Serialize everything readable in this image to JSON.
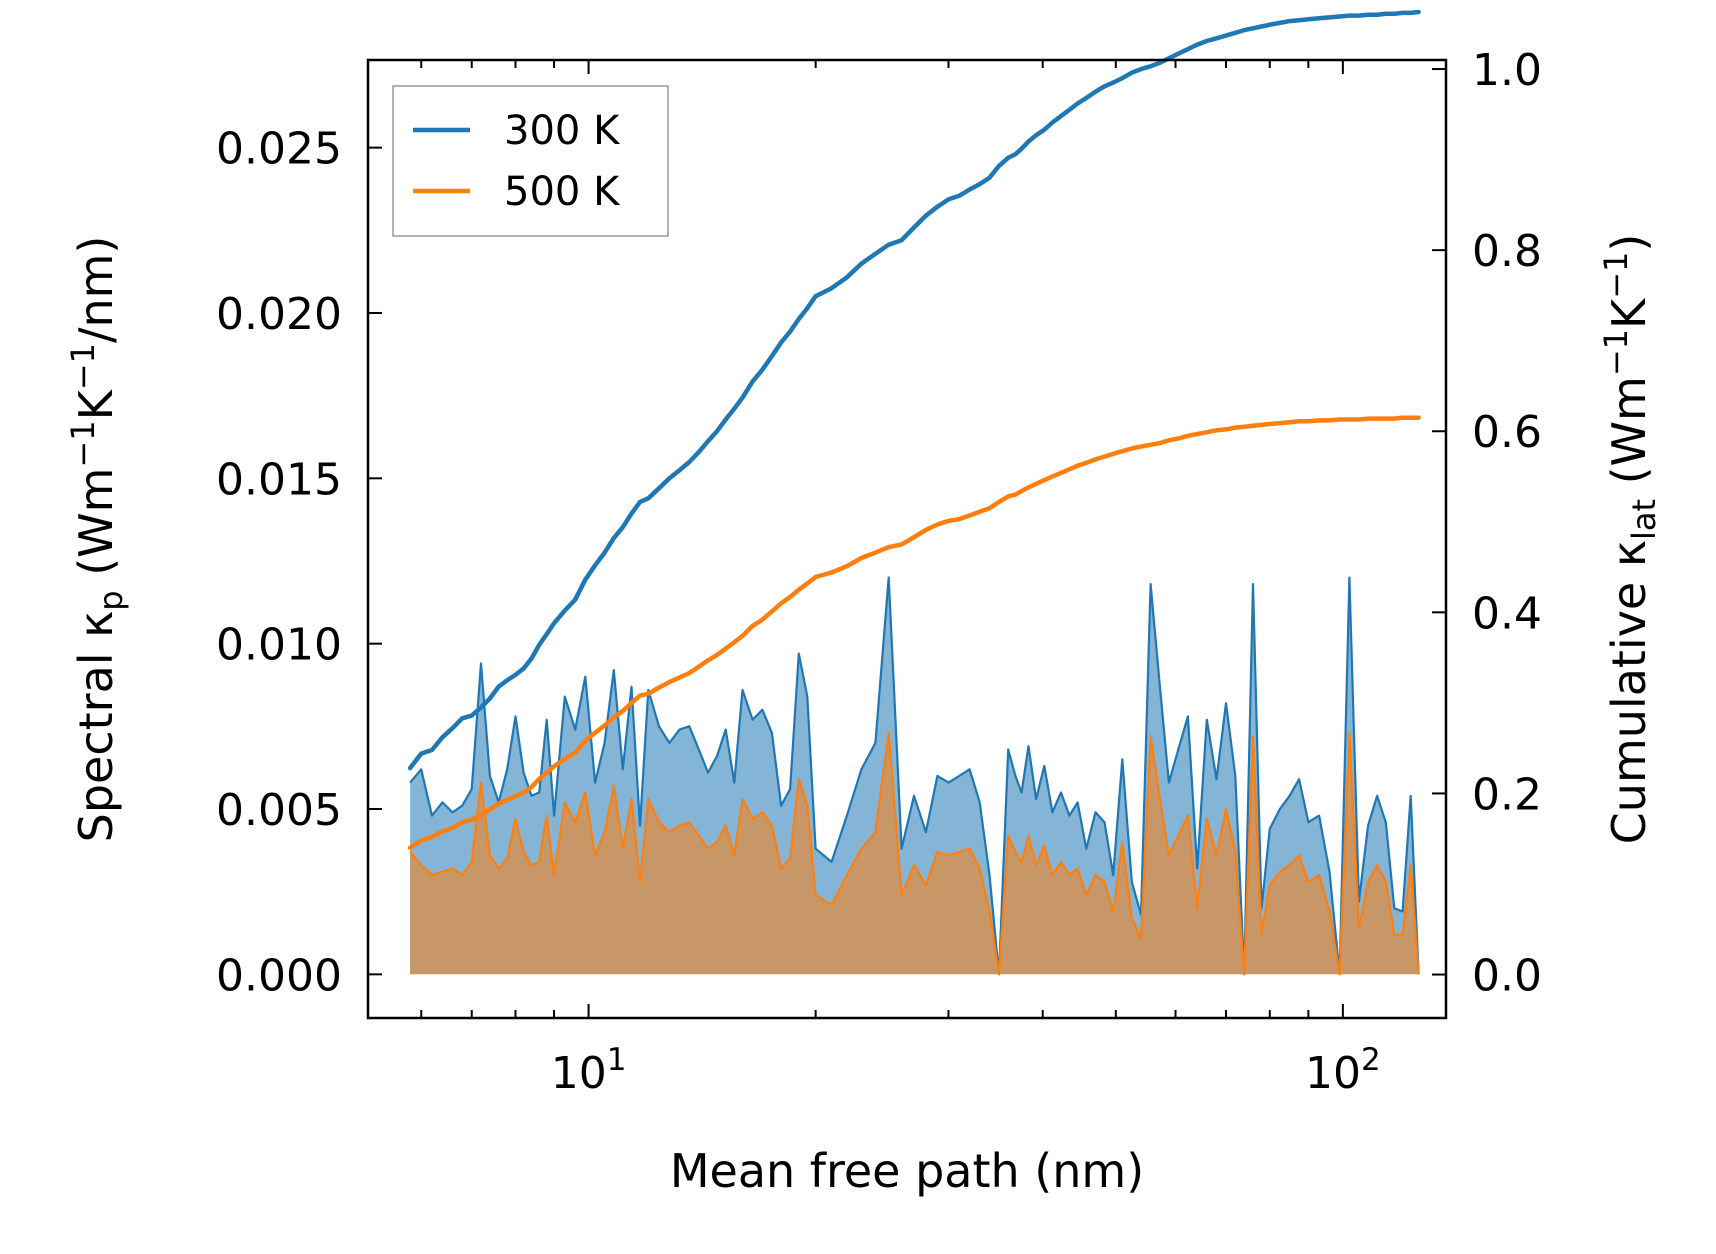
{
  "chart_data": {
    "type": "line",
    "xscale": "log",
    "xlim": [
      5.1,
      137
    ],
    "xlabel": "Mean free path (nm)",
    "xticks": [
      {
        "value": 10,
        "base": "10",
        "exp": "1"
      },
      {
        "value": 100,
        "base": "10",
        "exp": "2"
      }
    ],
    "left_axis": {
      "label_parts": [
        "Spectral κ",
        "p",
        " (Wm",
        "−1",
        "K",
        "−1",
        "/nm)"
      ],
      "ylim": [
        -0.00132,
        0.02765
      ],
      "ticks": [
        "0.000",
        "0.005",
        "0.010",
        "0.015",
        "0.020",
        "0.025"
      ],
      "tick_values": [
        0,
        0.005,
        0.01,
        0.015,
        0.02,
        0.025
      ]
    },
    "right_axis": {
      "label_parts": [
        "Cumulative κ",
        "lat",
        " (Wm",
        "−1",
        "K",
        "−1",
        ")"
      ],
      "ylim": [
        -0.048,
        1.01
      ],
      "ticks": [
        "0.0",
        "0.2",
        "0.4",
        "0.6",
        "0.8",
        "1.0"
      ],
      "tick_values": [
        0,
        0.2,
        0.4,
        0.6,
        0.8,
        1.0
      ]
    },
    "legend": {
      "position": "upper-left",
      "entries": [
        {
          "label": "300 K",
          "color": "#1f77b4"
        },
        {
          "label": "500 K",
          "color": "#ff7f0e"
        }
      ]
    },
    "x": [
      5.8,
      6.0,
      6.2,
      6.4,
      6.6,
      6.8,
      7.0,
      7.2,
      7.4,
      7.6,
      7.8,
      8.0,
      8.2,
      8.4,
      8.6,
      8.8,
      9.0,
      9.3,
      9.6,
      9.9,
      10.2,
      10.5,
      10.8,
      11.1,
      11.4,
      11.7,
      12.0,
      12.4,
      12.8,
      13.2,
      13.6,
      14.0,
      14.4,
      14.8,
      15.2,
      15.6,
      16.0,
      16.5,
      17.0,
      17.5,
      18.0,
      18.5,
      19.0,
      19.5,
      20.0,
      21.0,
      22.0,
      23.0,
      24.0,
      25.0,
      26.0,
      27.0,
      28.0,
      29.0,
      30.0,
      31.0,
      32.0,
      33.0,
      34.0,
      35.0,
      36.0,
      36.8,
      37.5,
      38.3,
      39.2,
      40.2,
      41.2,
      42.3,
      43.4,
      44.5,
      45.7,
      47.0,
      48.3,
      49.6,
      51.0,
      52.5,
      54.0,
      55.6,
      57.2,
      58.8,
      60.5,
      62.3,
      64.1,
      66.0,
      68.0,
      70.0,
      72.0,
      74.0,
      76.0,
      78.0,
      80.0,
      82.5,
      85.0,
      87.5,
      90.0,
      93.0,
      96.0,
      99.0,
      102.0,
      105.0,
      108.0,
      111.0,
      114.0,
      117.0,
      120.0,
      123.0,
      126.0
    ],
    "series": [
      {
        "name": "300 K",
        "color": "#1f77b4",
        "spectral": [
          0.0058,
          0.0062,
          0.0048,
          0.0052,
          0.0049,
          0.0051,
          0.0056,
          0.0094,
          0.006,
          0.0052,
          0.0062,
          0.0078,
          0.0061,
          0.0054,
          0.0055,
          0.0077,
          0.0048,
          0.0084,
          0.0074,
          0.009,
          0.0058,
          0.007,
          0.0092,
          0.0062,
          0.0087,
          0.0045,
          0.0086,
          0.0075,
          0.007,
          0.0074,
          0.0075,
          0.0068,
          0.0061,
          0.0066,
          0.0074,
          0.0058,
          0.0086,
          0.0077,
          0.008,
          0.0073,
          0.0051,
          0.0056,
          0.0097,
          0.0084,
          0.0038,
          0.0034,
          0.0048,
          0.0062,
          0.007,
          0.012,
          0.0038,
          0.0054,
          0.0043,
          0.006,
          0.0058,
          0.006,
          0.0062,
          0.0052,
          0.003,
          0.0,
          0.0068,
          0.006,
          0.0055,
          0.0069,
          0.0053,
          0.0063,
          0.0049,
          0.0055,
          0.0048,
          0.0052,
          0.0038,
          0.0049,
          0.0046,
          0.003,
          0.0065,
          0.0028,
          0.0018,
          0.0118,
          0.0087,
          0.0058,
          0.0068,
          0.0078,
          0.0032,
          0.0077,
          0.0059,
          0.0082,
          0.006,
          0.0,
          0.0118,
          0.002,
          0.0044,
          0.005,
          0.0054,
          0.0059,
          0.0046,
          0.0048,
          0.0031,
          0.0,
          0.012,
          0.0022,
          0.0045,
          0.0054,
          0.0046,
          0.002,
          0.0019,
          0.0054,
          0.0
        ],
        "cumulative": [
          0.228,
          0.244,
          0.248,
          0.262,
          0.272,
          0.283,
          0.286,
          0.295,
          0.305,
          0.318,
          0.325,
          0.331,
          0.338,
          0.349,
          0.364,
          0.376,
          0.388,
          0.402,
          0.414,
          0.436,
          0.452,
          0.466,
          0.482,
          0.494,
          0.509,
          0.522,
          0.526,
          0.537,
          0.548,
          0.557,
          0.566,
          0.577,
          0.589,
          0.6,
          0.613,
          0.625,
          0.637,
          0.655,
          0.668,
          0.683,
          0.698,
          0.71,
          0.724,
          0.736,
          0.749,
          0.758,
          0.77,
          0.785,
          0.796,
          0.806,
          0.811,
          0.825,
          0.838,
          0.848,
          0.856,
          0.86,
          0.867,
          0.873,
          0.88,
          0.893,
          0.902,
          0.906,
          0.912,
          0.92,
          0.927,
          0.933,
          0.941,
          0.948,
          0.955,
          0.962,
          0.968,
          0.975,
          0.981,
          0.985,
          0.99,
          0.996,
          1.0,
          1.003,
          1.007,
          1.012,
          1.017,
          1.022,
          1.027,
          1.031,
          1.034,
          1.037,
          1.04,
          1.043,
          1.045,
          1.047,
          1.049,
          1.051,
          1.053,
          1.054,
          1.055,
          1.056,
          1.057,
          1.058,
          1.059,
          1.059,
          1.06,
          1.06,
          1.061,
          1.061,
          1.062,
          1.062,
          1.063
        ]
      },
      {
        "name": "500 K",
        "color": "#ff7f0e",
        "spectral": [
          0.0037,
          0.0033,
          0.003,
          0.0031,
          0.0032,
          0.003,
          0.0034,
          0.0058,
          0.0036,
          0.0032,
          0.0035,
          0.0047,
          0.0037,
          0.0033,
          0.0034,
          0.0048,
          0.003,
          0.0052,
          0.0046,
          0.0055,
          0.0036,
          0.0043,
          0.0057,
          0.0038,
          0.0053,
          0.0028,
          0.0053,
          0.0046,
          0.0043,
          0.0045,
          0.0046,
          0.0042,
          0.0038,
          0.004,
          0.0045,
          0.0036,
          0.0053,
          0.0047,
          0.0049,
          0.0045,
          0.0032,
          0.0035,
          0.0059,
          0.0051,
          0.0024,
          0.0021,
          0.003,
          0.0038,
          0.0043,
          0.0073,
          0.0024,
          0.0033,
          0.0027,
          0.0037,
          0.0036,
          0.0037,
          0.0038,
          0.0032,
          0.0019,
          0.0,
          0.0042,
          0.0037,
          0.0034,
          0.0042,
          0.0033,
          0.0039,
          0.003,
          0.0034,
          0.003,
          0.0032,
          0.0024,
          0.003,
          0.0028,
          0.0019,
          0.004,
          0.0017,
          0.0011,
          0.0072,
          0.0053,
          0.0036,
          0.0042,
          0.0048,
          0.002,
          0.0047,
          0.0036,
          0.005,
          0.0037,
          0.0,
          0.0072,
          0.0012,
          0.0027,
          0.0031,
          0.0033,
          0.0036,
          0.0028,
          0.003,
          0.0019,
          0.0,
          0.0073,
          0.0014,
          0.0028,
          0.0033,
          0.0028,
          0.0012,
          0.0012,
          0.0033,
          0.0
        ],
        "cumulative": [
          0.14,
          0.148,
          0.152,
          0.158,
          0.162,
          0.168,
          0.171,
          0.176,
          0.182,
          0.189,
          0.193,
          0.197,
          0.201,
          0.207,
          0.216,
          0.223,
          0.23,
          0.238,
          0.245,
          0.258,
          0.267,
          0.275,
          0.284,
          0.291,
          0.3,
          0.308,
          0.31,
          0.317,
          0.323,
          0.328,
          0.333,
          0.34,
          0.347,
          0.353,
          0.36,
          0.367,
          0.374,
          0.385,
          0.392,
          0.401,
          0.41,
          0.417,
          0.425,
          0.432,
          0.439,
          0.444,
          0.451,
          0.46,
          0.466,
          0.472,
          0.475,
          0.483,
          0.491,
          0.497,
          0.501,
          0.503,
          0.507,
          0.511,
          0.515,
          0.522,
          0.528,
          0.53,
          0.534,
          0.538,
          0.542,
          0.546,
          0.55,
          0.554,
          0.558,
          0.562,
          0.565,
          0.569,
          0.572,
          0.575,
          0.578,
          0.581,
          0.583,
          0.585,
          0.587,
          0.59,
          0.592,
          0.595,
          0.597,
          0.599,
          0.601,
          0.602,
          0.604,
          0.605,
          0.606,
          0.607,
          0.608,
          0.609,
          0.61,
          0.611,
          0.611,
          0.612,
          0.612,
          0.613,
          0.613,
          0.613,
          0.614,
          0.614,
          0.614,
          0.614,
          0.615,
          0.615,
          0.615
        ]
      }
    ]
  }
}
